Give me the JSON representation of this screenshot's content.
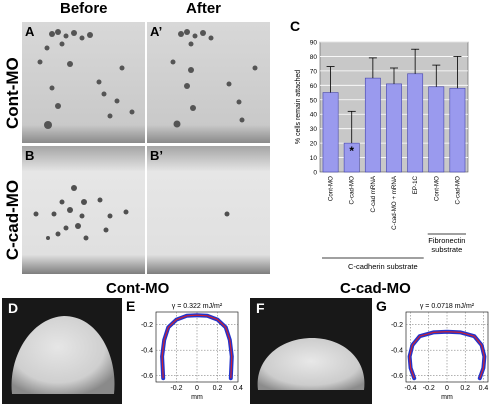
{
  "headers": {
    "before": "Before",
    "after": "After",
    "cont_mo": "Cont-MO",
    "c_cad_mo": "C-cad-MO"
  },
  "row_labels": {
    "top": "Cont-MO",
    "bottom": "C-cad-MO"
  },
  "panel_labels": {
    "A": "A",
    "A2": "A’",
    "B": "B",
    "B2": "B’",
    "C": "C",
    "D": "D",
    "E": "E",
    "F": "F",
    "G": "G"
  },
  "colors": {
    "bar_fill": "#9a9aee",
    "bar_stroke": "#4444aa",
    "ring_outer": "#2233cc",
    "ring_inner": "#cc2233"
  },
  "chart_data": [
    {
      "type": "bar",
      "ylabel": "% cells remain attached",
      "ylim": [
        0,
        90
      ],
      "yticks": [
        "0",
        "10",
        "20",
        "30",
        "40",
        "50",
        "60",
        "70",
        "80",
        "90"
      ],
      "categories": [
        "Cont-MO",
        "C-cad-MO",
        "C-cad mRNA",
        "C-cad-MO + mRNA",
        "EP-1C",
        "Cont-MO",
        "C-cad-MO"
      ],
      "values": [
        55,
        20,
        65,
        61,
        68,
        59,
        58
      ],
      "errors": [
        18,
        22,
        14,
        11,
        17,
        15,
        22
      ],
      "annotation": "*",
      "groups": [
        {
          "label": "C-cadherin substrate",
          "from": 0,
          "to": 4
        },
        {
          "label": "Fibronectin substrate",
          "from": 5,
          "to": 6
        }
      ]
    },
    {
      "type": "line",
      "panel": "E",
      "annotation": "γ = 0.322 mJ/m²",
      "xlabel": "mm",
      "xticks": [
        "-0.2",
        "0",
        "0.2",
        "0.4"
      ],
      "yticks": [
        "-0.2",
        "-0.4",
        "-0.6"
      ],
      "xlim": [
        -0.4,
        0.4
      ],
      "ylim": [
        -0.65,
        -0.1
      ],
      "x": [
        -0.33,
        -0.34,
        -0.32,
        -0.28,
        -0.2,
        -0.1,
        0.0,
        0.1,
        0.2,
        0.28,
        0.32,
        0.34,
        0.33
      ],
      "y": [
        -0.62,
        -0.45,
        -0.32,
        -0.22,
        -0.16,
        -0.13,
        -0.125,
        -0.13,
        -0.16,
        -0.22,
        -0.32,
        -0.45,
        -0.62
      ]
    },
    {
      "type": "line",
      "panel": "G",
      "annotation": "γ = 0.0718 mJ/m²",
      "xlabel": "mm",
      "xticks": [
        "-0.4",
        "-0.2",
        "0",
        "0.2",
        "0.4"
      ],
      "yticks": [
        "-0.2",
        "-0.4",
        "-0.6"
      ],
      "xlim": [
        -0.45,
        0.45
      ],
      "ylim": [
        -0.65,
        -0.1
      ],
      "x": [
        -0.36,
        -0.4,
        -0.41,
        -0.38,
        -0.3,
        -0.15,
        0.0,
        0.15,
        0.3,
        0.38,
        0.41,
        0.4,
        0.36
      ],
      "y": [
        -0.62,
        -0.54,
        -0.45,
        -0.36,
        -0.29,
        -0.26,
        -0.255,
        -0.26,
        -0.29,
        -0.36,
        -0.45,
        -0.54,
        -0.62
      ]
    }
  ]
}
